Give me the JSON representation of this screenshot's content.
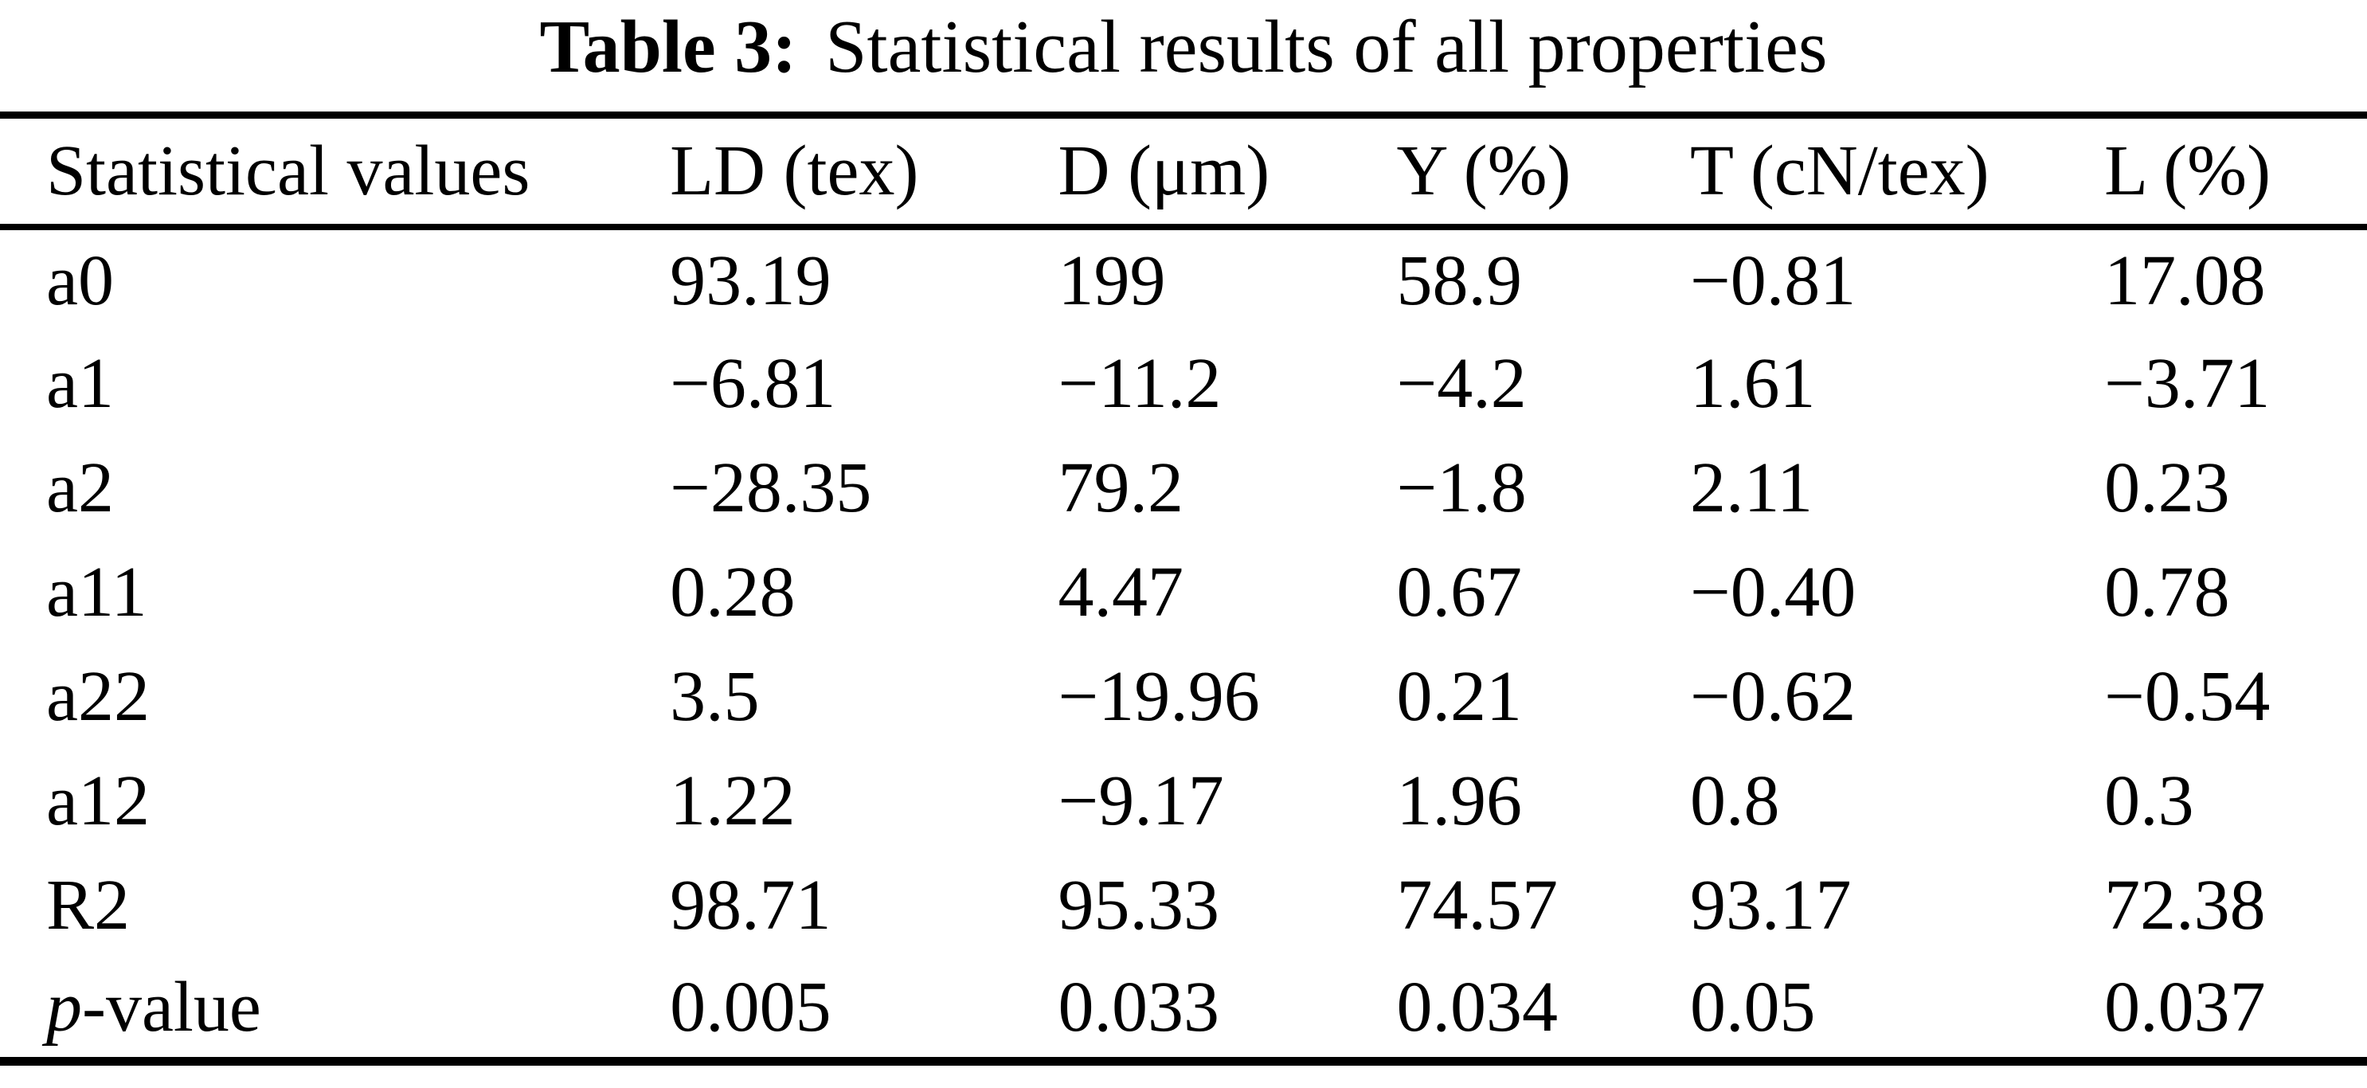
{
  "title": {
    "bold": "Table 3:",
    "rest": "Statistical results of all properties"
  },
  "table": {
    "columns": [
      "Statistical values",
      "LD (tex)",
      "D (μm)",
      "Y (%)",
      "T (cN/tex)",
      "L (%)"
    ],
    "rows": [
      {
        "label": "a0",
        "cells": [
          "93.19",
          "199",
          "58.9",
          "−0.81",
          "17.08"
        ]
      },
      {
        "label": "a1",
        "cells": [
          "−6.81",
          "−11.2",
          "−4.2",
          "1.61",
          "−3.71"
        ]
      },
      {
        "label": "a2",
        "cells": [
          "−28.35",
          "79.2",
          "−1.8",
          "2.11",
          "0.23"
        ]
      },
      {
        "label": "a11",
        "cells": [
          "0.28",
          "4.47",
          "0.67",
          "−0.40",
          "0.78"
        ]
      },
      {
        "label": "a22",
        "cells": [
          "3.5",
          "−19.96",
          "0.21",
          "−0.62",
          "−0.54"
        ]
      },
      {
        "label": "a12",
        "cells": [
          "1.22",
          "−9.17",
          "1.96",
          "0.8",
          "0.3"
        ]
      },
      {
        "label": "R2",
        "cells": [
          "98.71",
          "95.33",
          "74.57",
          "93.17",
          "72.38"
        ]
      },
      {
        "label": "p-value",
        "label_italic_prefix": "p",
        "label_rest": "-value",
        "cells": [
          "0.005",
          "0.033",
          "0.034",
          "0.05",
          "0.037"
        ]
      }
    ]
  },
  "colors": {
    "text": "#000000",
    "background": "#ffffff",
    "rule": "#000000"
  }
}
